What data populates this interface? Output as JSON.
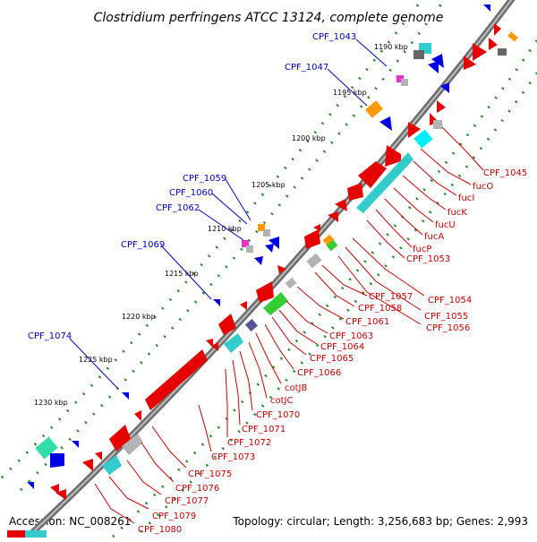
{
  "title": "Clostridium perfringens ATCC 13124, complete genome",
  "accession": "Accession: NC_008261",
  "topology": "Topology: circular; Length: 3,256,683 bp; Genes: 2,993",
  "colors": {
    "backbone": "#8c8c8c",
    "dots_outer": "#2e8b2e",
    "forward_gene": "#e60000",
    "reverse_gene": "#0000e6",
    "cyan": "#33cccc",
    "green": "#33cc33",
    "orange": "#ff9900",
    "grey": "#b3b3b3",
    "magenta": "#e633cc",
    "label_blue": "#0000cc",
    "label_red": "#cc0000"
  },
  "ticks": [
    "1190 kbp",
    "1195 kbp",
    "1200 kbp",
    "1205 kbp",
    "1210 kbp",
    "1215 kbp",
    "1220 kbp",
    "1225 kbp",
    "1230 kbp"
  ],
  "blue_labels": [
    "CPF_1043",
    "CPF_1047",
    "CPF_1059",
    "CPF_1060",
    "CPF_1062",
    "CPF_1069",
    "CPF_1074"
  ],
  "red_labels": [
    "CPF_1045",
    "fucO",
    "fucI",
    "fucK",
    "fucU",
    "fucA",
    "fucP",
    "CPF_1053",
    "CPF_1054",
    "CPF_1055",
    "CPF_1056",
    "CPF_1057",
    "CPF_1058",
    "CPF_1061",
    "CPF_1063",
    "CPF_1064",
    "CPF_1065",
    "CPF_1066",
    "cotJB",
    "cotJC",
    "CPF_1070",
    "CPF_1071",
    "CPF_1072",
    "CPF_1073",
    "CPF_1075",
    "CPF_1076",
    "CPF_1077",
    "CPF_1079",
    "CPF_1080"
  ]
}
